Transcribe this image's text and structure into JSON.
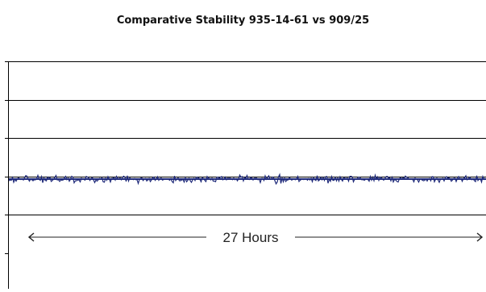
{
  "chart_data": {
    "type": "line",
    "title": "Comparative Stability 935-14-61 vs 909/25",
    "xlabel": "",
    "ylabel": "",
    "grid": true,
    "gridline_count": 5,
    "legend": "none",
    "annotation": {
      "text": "27 Hours",
      "arrow": "double-headed",
      "span": "full-width"
    },
    "series": [
      {
        "color": "#1f2a7a",
        "mean_level": 0,
        "noise_amplitude": 1,
        "description_of_signal": "flat noisy trace"
      }
    ],
    "colors": {
      "axis": "#000000",
      "grid": "#000000",
      "series": "#1f2a7a",
      "background": "#ffffff"
    }
  }
}
